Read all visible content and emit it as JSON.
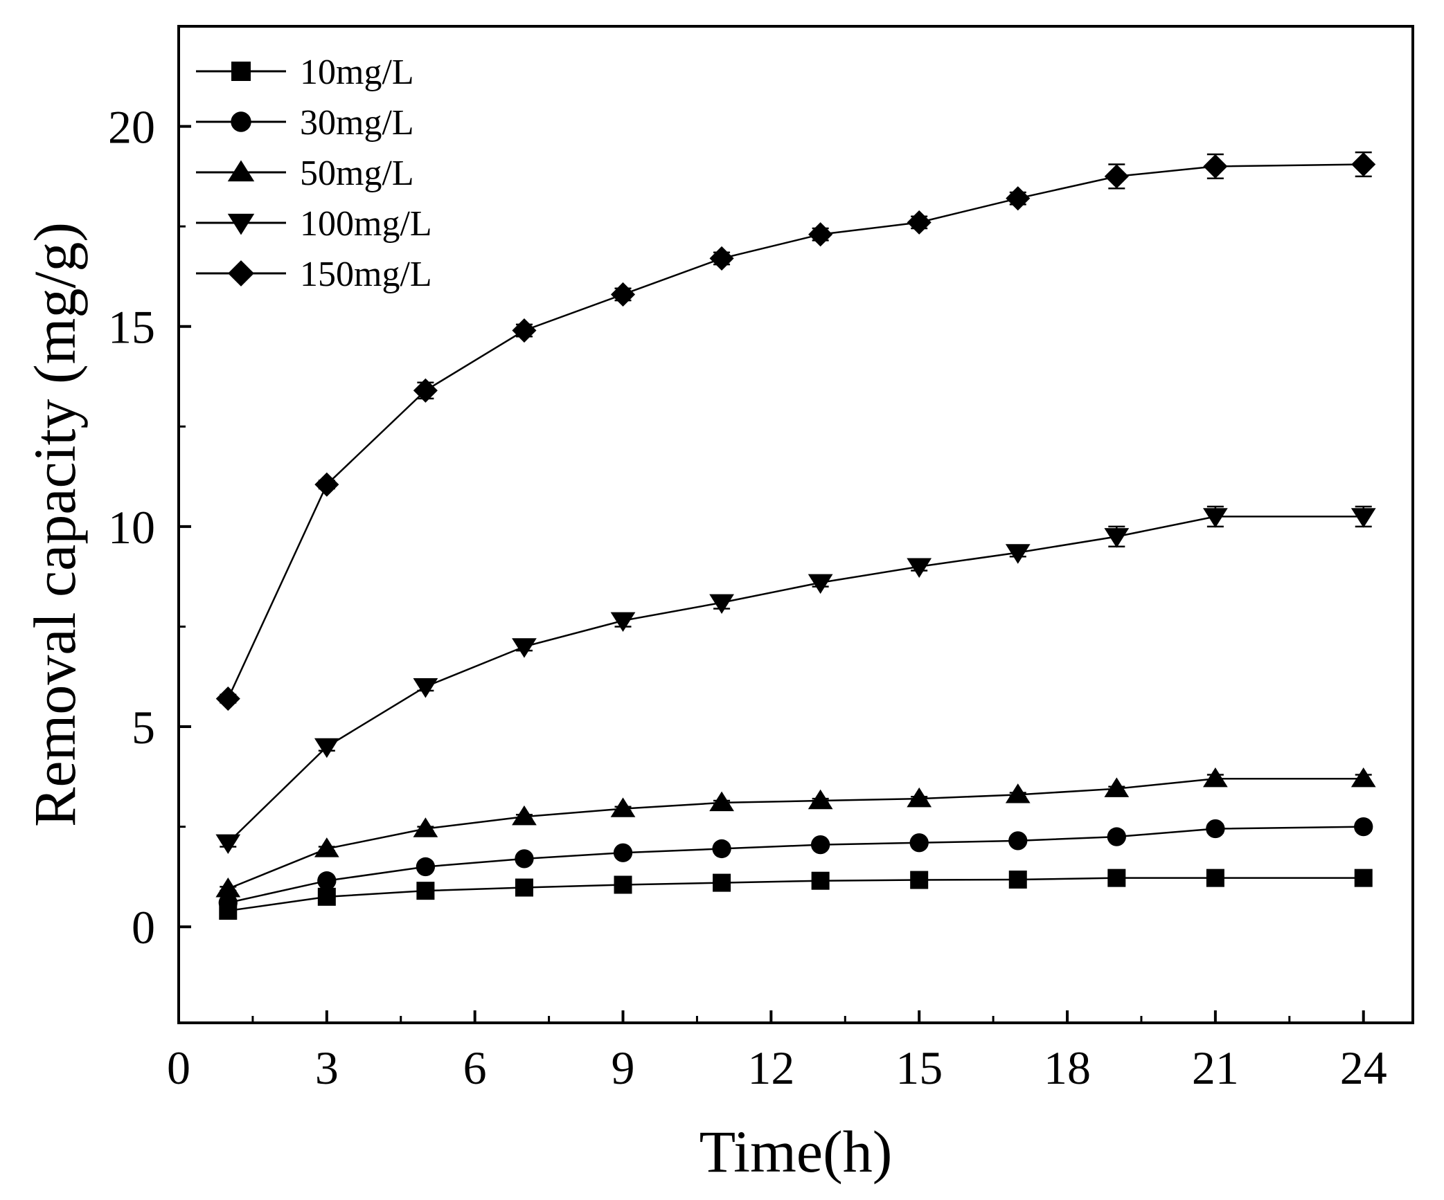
{
  "chart_data": {
    "type": "line",
    "title": "",
    "xlabel": "Time(h)",
    "ylabel": "Removal capacity (mg/g)",
    "xlim": [
      0,
      25
    ],
    "ylim": [
      -2.4,
      22.5
    ],
    "xticks": [
      0,
      3,
      6,
      9,
      12,
      15,
      18,
      21,
      24
    ],
    "xtick_labels": [
      "0",
      "3",
      "6",
      "9",
      "12",
      "15",
      "18",
      "21",
      "24"
    ],
    "yticks": [
      0,
      5,
      10,
      15,
      20
    ],
    "ytick_labels": [
      "0",
      "5",
      "10",
      "15",
      "20"
    ],
    "grid": false,
    "legend_position": "top-left",
    "x": [
      1,
      3,
      5,
      7,
      9,
      11,
      13,
      15,
      17,
      19,
      21,
      24
    ],
    "series": [
      {
        "name": "10mg/L",
        "marker": "square",
        "values": [
          0.4,
          0.75,
          0.9,
          0.98,
          1.05,
          1.1,
          1.15,
          1.17,
          1.18,
          1.22,
          1.22,
          1.22
        ],
        "errors": [
          0.05,
          0.05,
          0.05,
          0.05,
          0.05,
          0.05,
          0.05,
          0.05,
          0.05,
          0.05,
          0.05,
          0.05
        ]
      },
      {
        "name": "30mg/L",
        "marker": "circle",
        "values": [
          0.6,
          1.15,
          1.5,
          1.7,
          1.85,
          1.95,
          2.05,
          2.1,
          2.15,
          2.25,
          2.45,
          2.5
        ],
        "errors": [
          0.05,
          0.05,
          0.05,
          0.05,
          0.05,
          0.05,
          0.05,
          0.05,
          0.05,
          0.05,
          0.1,
          0.1
        ]
      },
      {
        "name": "50mg/L",
        "marker": "triangle-up",
        "values": [
          0.95,
          1.95,
          2.45,
          2.75,
          2.95,
          3.1,
          3.15,
          3.2,
          3.3,
          3.45,
          3.7,
          3.7
        ],
        "errors": [
          0.05,
          0.05,
          0.05,
          0.05,
          0.05,
          0.05,
          0.05,
          0.05,
          0.05,
          0.05,
          0.1,
          0.1
        ]
      },
      {
        "name": "100mg/L",
        "marker": "triangle-down",
        "values": [
          2.1,
          4.5,
          6.0,
          7.0,
          7.65,
          8.1,
          8.6,
          9.0,
          9.35,
          9.75,
          10.25,
          10.25
        ],
        "errors": [
          0.1,
          0.1,
          0.1,
          0.1,
          0.15,
          0.15,
          0.1,
          0.1,
          0.1,
          0.25,
          0.25,
          0.25
        ]
      },
      {
        "name": "150mg/L",
        "marker": "diamond",
        "values": [
          5.7,
          11.05,
          13.4,
          14.9,
          15.8,
          16.7,
          17.3,
          17.6,
          18.2,
          18.75,
          19.0,
          19.05
        ],
        "errors": [
          0.1,
          0.1,
          0.2,
          0.15,
          0.15,
          0.15,
          0.15,
          0.15,
          0.15,
          0.3,
          0.3,
          0.3
        ]
      }
    ]
  }
}
